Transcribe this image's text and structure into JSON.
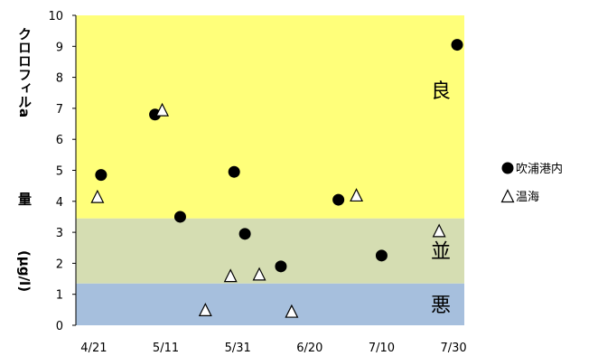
{
  "chart_data": {
    "type": "scatter",
    "title": "",
    "ylabel_parts": [
      "クロロフィルa",
      "量",
      "(μg/l)"
    ],
    "xlim": [
      "2020-04-16",
      "2020-08-02"
    ],
    "x_ticks": [
      "2020-04-21",
      "2020-05-11",
      "2020-05-31",
      "2020-06-20",
      "2020-07-10",
      "2020-07-30"
    ],
    "x_tick_labels": [
      "4/21",
      "5/11",
      "5/31",
      "6/20",
      "7/10",
      "7/30"
    ],
    "ylim": [
      0,
      10
    ],
    "y_ticks": [
      0,
      1,
      2,
      3,
      4,
      5,
      6,
      7,
      8,
      9,
      10
    ],
    "grid": false,
    "legend_position": "right",
    "zones": [
      {
        "label": "悪",
        "from": 0,
        "to": 1.35,
        "color": "#a6bfdd"
      },
      {
        "label": "並",
        "from": 1.35,
        "to": 3.45,
        "color": "#d5ddb2"
      },
      {
        "label": "良",
        "from": 3.45,
        "to": 10,
        "color": "#ffff7a"
      }
    ],
    "series": [
      {
        "name": "吹浦港内",
        "marker": "circle",
        "color": "#000000",
        "points": [
          {
            "x": "2020-04-23",
            "y": 4.85
          },
          {
            "x": "2020-05-08",
            "y": 6.8
          },
          {
            "x": "2020-05-15",
            "y": 3.5
          },
          {
            "x": "2020-05-30",
            "y": 4.95
          },
          {
            "x": "2020-06-02",
            "y": 2.95
          },
          {
            "x": "2020-06-12",
            "y": 1.9
          },
          {
            "x": "2020-06-28",
            "y": 4.05
          },
          {
            "x": "2020-07-10",
            "y": 2.25
          },
          {
            "x": "2020-07-31",
            "y": 9.05
          }
        ]
      },
      {
        "name": "温海",
        "marker": "triangle",
        "color": "#000000",
        "points": [
          {
            "x": "2020-04-22",
            "y": 4.15
          },
          {
            "x": "2020-05-10",
            "y": 6.95
          },
          {
            "x": "2020-05-22",
            "y": 0.5
          },
          {
            "x": "2020-05-29",
            "y": 1.6
          },
          {
            "x": "2020-06-06",
            "y": 1.65
          },
          {
            "x": "2020-06-15",
            "y": 0.45
          },
          {
            "x": "2020-07-03",
            "y": 4.2
          },
          {
            "x": "2020-07-26",
            "y": 3.05
          }
        ]
      }
    ]
  }
}
